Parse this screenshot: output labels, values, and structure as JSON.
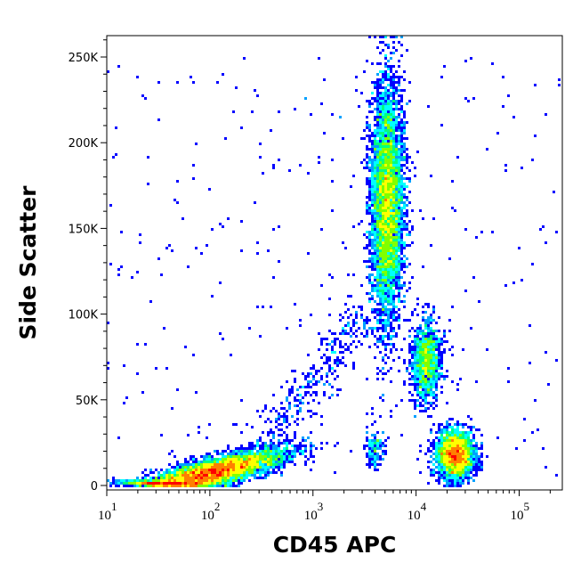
{
  "chart_data": {
    "type": "scatter",
    "subtype": "density pseudocolor",
    "xlabel": "CD45 APC",
    "ylabel": "Side Scatter",
    "xscale": "log",
    "xlim": [
      10,
      262144
    ],
    "ylim": [
      0,
      262144
    ],
    "xticks": [
      {
        "base": "10",
        "exp": "1"
      },
      {
        "base": "10",
        "exp": "2"
      },
      {
        "base": "10",
        "exp": "3"
      },
      {
        "base": "10",
        "exp": "4"
      },
      {
        "base": "10",
        "exp": "5"
      }
    ],
    "yticks": [
      "0",
      "50K",
      "100K",
      "150K",
      "200K",
      "250K"
    ],
    "ytick_values": [
      0,
      50000,
      100000,
      150000,
      200000,
      250000
    ],
    "grid": false,
    "colormap": [
      "#0000ff",
      "#00a0ff",
      "#00ffff",
      "#00ff80",
      "#80ff00",
      "#ffff00",
      "#ff8000",
      "#ff0000"
    ],
    "populations": [
      {
        "cd45_log10_center": 2.0,
        "cd45_log10_sd": 0.35,
        "ssc_center": 7000,
        "ssc_sd": 4000,
        "ssc_slope_per_decade": 15000,
        "events": 6000
      },
      {
        "cd45_log10_center": 3.72,
        "cd45_log10_sd": 0.08,
        "ssc_center": 165000,
        "ssc_sd": 35000,
        "events": 5000
      },
      {
        "cd45_log10_center": 4.1,
        "cd45_log10_sd": 0.07,
        "ssc_center": 72000,
        "ssc_sd": 12000,
        "events": 1200
      },
      {
        "cd45_log10_center": 4.38,
        "cd45_log10_sd": 0.09,
        "ssc_center": 18000,
        "ssc_sd": 7000,
        "events": 2500
      },
      {
        "cd45_log10_center": 3.6,
        "cd45_log10_sd": 0.05,
        "ssc_center": 22000,
        "ssc_sd": 5000,
        "events": 150
      }
    ]
  }
}
